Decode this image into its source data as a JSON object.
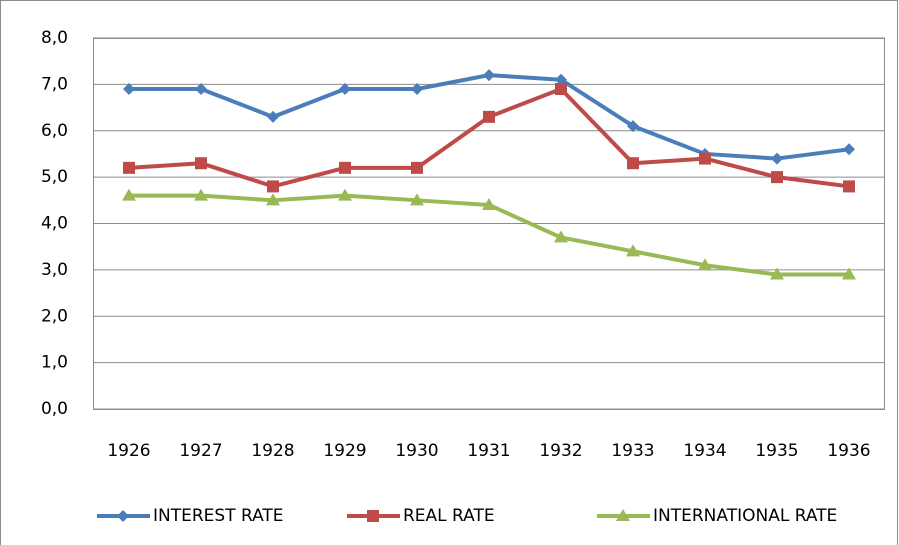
{
  "chart_data": {
    "type": "line",
    "categories": [
      "1926",
      "1927",
      "1928",
      "1929",
      "1930",
      "1931",
      "1932",
      "1933",
      "1934",
      "1935",
      "1936"
    ],
    "series": [
      {
        "name": "INTEREST RATE",
        "color": "#4a7ebb",
        "marker": "diamond",
        "values": [
          6.9,
          6.9,
          6.3,
          6.9,
          6.9,
          7.2,
          7.1,
          6.1,
          5.5,
          5.4,
          5.6
        ]
      },
      {
        "name": "REAL RATE",
        "color": "#be4b48",
        "marker": "square",
        "values": [
          5.2,
          5.3,
          4.8,
          5.2,
          5.2,
          6.3,
          6.9,
          5.3,
          5.4,
          5.0,
          4.8
        ]
      },
      {
        "name": "INTERNATIONAL RATE",
        "color": "#98b954",
        "marker": "triangle",
        "values": [
          4.6,
          4.6,
          4.5,
          4.6,
          4.5,
          4.4,
          3.7,
          3.4,
          3.1,
          2.9,
          2.9
        ]
      }
    ],
    "ylim": [
      0,
      8
    ],
    "yticks": [
      {
        "value": 0,
        "label": "0,0"
      },
      {
        "value": 1,
        "label": "1,0"
      },
      {
        "value": 2,
        "label": "2,0"
      },
      {
        "value": 3,
        "label": "3,0"
      },
      {
        "value": 4,
        "label": "4,0"
      },
      {
        "value": 5,
        "label": "5,0"
      },
      {
        "value": 6,
        "label": "6,0"
      },
      {
        "value": 7,
        "label": "7,0"
      },
      {
        "value": 8,
        "label": "8,0"
      }
    ],
    "grid": true,
    "legend": "bottom"
  }
}
